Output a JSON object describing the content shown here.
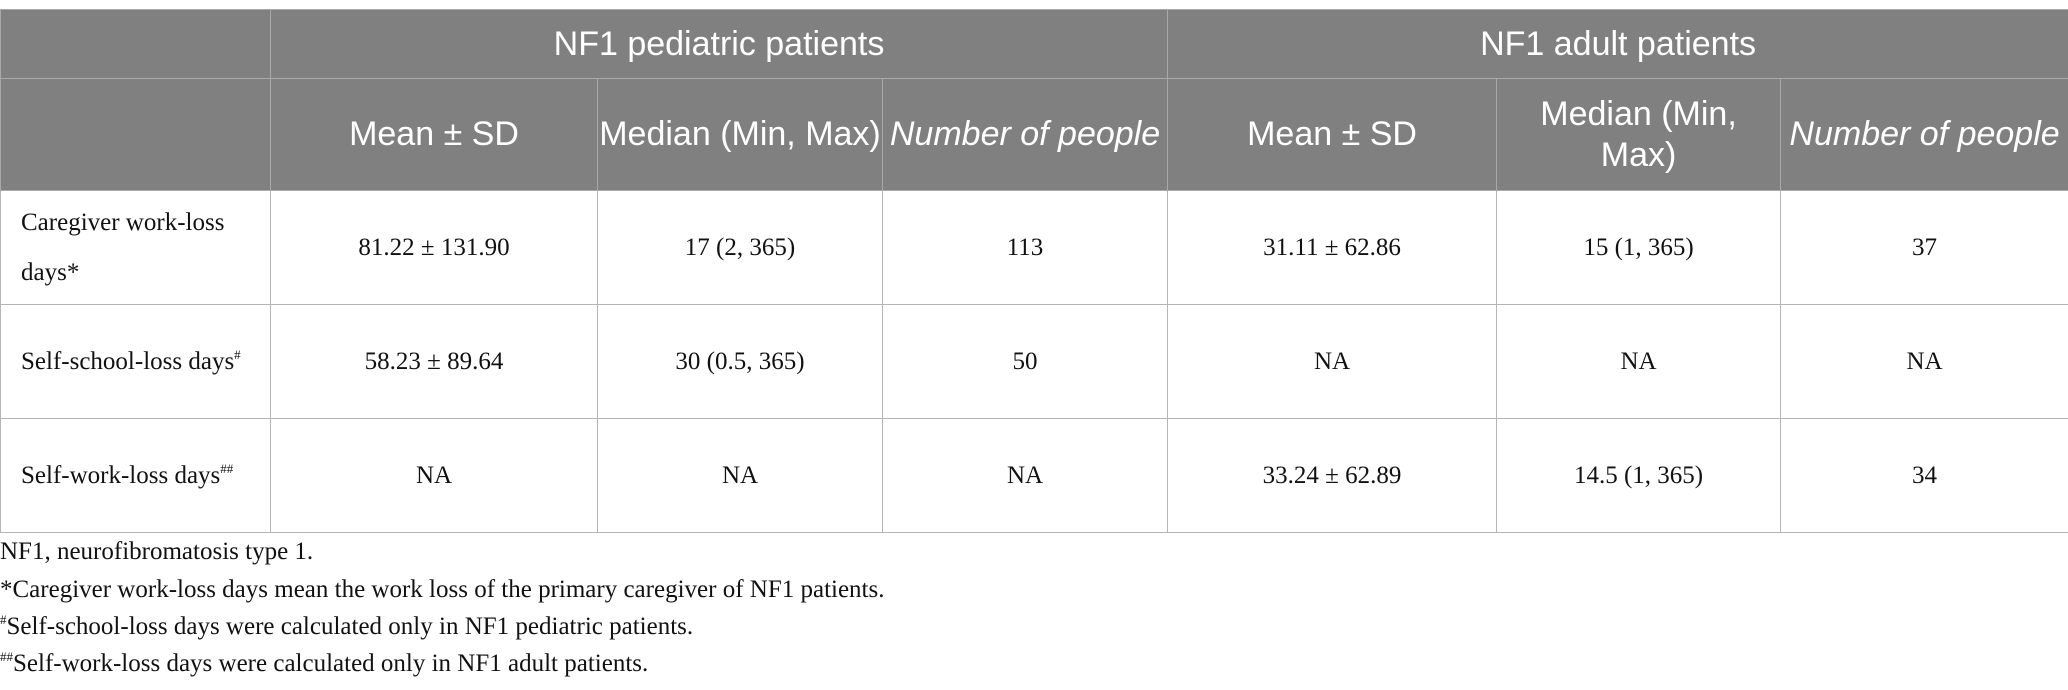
{
  "table": {
    "group_headers": [
      "NF1 pediatric patients",
      "NF1 adult patients"
    ],
    "sub_headers": [
      "Mean ± SD",
      "Median (Min, Max)",
      "Number of people",
      "Mean ± SD",
      "Median (Min, Max)",
      "Number of people"
    ],
    "rows": [
      {
        "label": "Caregiver work-loss days",
        "mark": "*",
        "cells": [
          "81.22 ± 131.90",
          "17 (2, 365)",
          "113",
          "31.11 ± 62.86",
          "15 (1, 365)",
          "37"
        ]
      },
      {
        "label": "Self-school-loss days",
        "mark": "#",
        "cells": [
          "58.23 ± 89.64",
          "30 (0.5, 365)",
          "50",
          "NA",
          "NA",
          "NA"
        ]
      },
      {
        "label": "Self-work-loss days",
        "mark": "##",
        "cells": [
          "NA",
          "NA",
          "NA",
          "33.24 ± 62.89",
          "14.5 (1, 365)",
          "34"
        ]
      }
    ]
  },
  "footnotes": [
    {
      "mark": "",
      "text": "NF1, neurofibromatosis type 1."
    },
    {
      "mark": "*",
      "text": "Caregiver work-loss days mean the work loss of the primary caregiver of NF1 patients."
    },
    {
      "mark": "#",
      "text": "Self-school-loss days were calculated only in NF1 pediatric patients."
    },
    {
      "mark": "##",
      "text": "Self-work-loss days were calculated only in NF1 adult patients."
    }
  ]
}
